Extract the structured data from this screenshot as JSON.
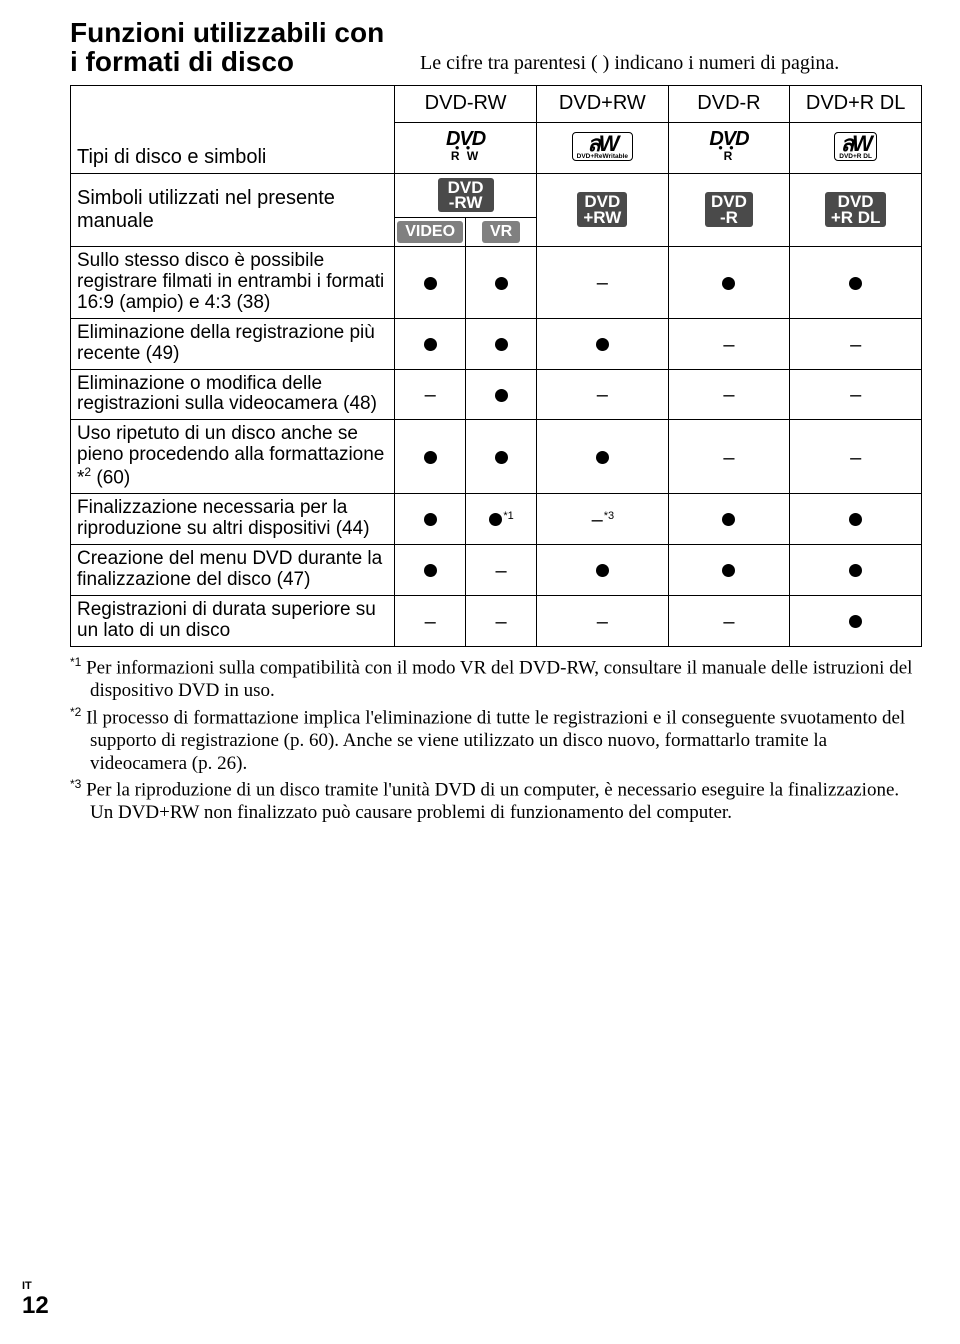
{
  "title": "Funzioni utilizzabili con i formati di disco",
  "subtitle": "Le cifre tra parentesi ( ) indicano i numeri di pagina.",
  "headers": [
    "DVD-RW",
    "DVD+RW",
    "DVD-R",
    "DVD+R DL"
  ],
  "tipi_label": "Tipi di disco e simboli",
  "simboli_label": "Simboli utilizzati nel presente manuale",
  "badges": {
    "dvdrw_top": "DVD\n-RW",
    "video": "VIDEO",
    "vr": "VR",
    "plusrw": "DVD\n+RW",
    "minusr": "DVD\n-R",
    "plusrdl": "DVD\n+R DL"
  },
  "rows": [
    {
      "label": "Sullo stesso disco è possibile registrare filmati in entrambi i formati 16:9 (ampio) e 4:3 (38)",
      "cells": [
        "dot",
        "dot",
        "dash",
        "dot",
        "dot"
      ]
    },
    {
      "label": "Eliminazione della registrazione più recente (49)",
      "cells": [
        "dot",
        "dot",
        "dot",
        "dash",
        "dash"
      ]
    },
    {
      "label": "Eliminazione o modifica delle registrazioni sulla videocamera (48)",
      "cells": [
        "dash",
        "dot",
        "dash",
        "dash",
        "dash"
      ]
    },
    {
      "label_html": "Uso ripetuto di un disco anche se pieno procedendo alla formattazione *<span class='sup2'>2</span> (60)",
      "cells": [
        "dot",
        "dot",
        "dot",
        "dash",
        "dash"
      ]
    },
    {
      "label": "Finalizzazione necessaria per la riproduzione su altri dispositivi (44)",
      "cells": [
        "dot",
        "dot*1",
        "dash*3",
        "dot",
        "dot"
      ]
    },
    {
      "label": "Creazione del menu DVD durante la finalizzazione del disco (47)",
      "cells": [
        "dot",
        "dash",
        "dot",
        "dot",
        "dot"
      ]
    },
    {
      "label": "Registrazioni di durata superiore su un lato di un disco",
      "cells": [
        "dash",
        "dash",
        "dash",
        "dash",
        "dot"
      ]
    }
  ],
  "footnotes": [
    {
      "mark": "*1",
      "text": "Per informazioni sulla compatibilità con il modo VR del DVD-RW, consultare il manuale delle istruzioni del dispositivo DVD in uso."
    },
    {
      "mark": "*2",
      "text": "Il processo di formattazione implica l'eliminazione di tutte le registrazioni e il conseguente svuotamento del supporto di registrazione (p. 60). Anche se viene utilizzato un disco nuovo, formattarlo tramite la videocamera (p. 26)."
    },
    {
      "mark": "*3",
      "text": "Per la riproduzione di un disco tramite l'unità DVD di un computer, è necessario eseguire la finalizzazione. Un DVD+RW non finalizzato può causare problemi di funzionamento del computer."
    }
  ],
  "page": {
    "lang": "IT",
    "num": "12"
  }
}
